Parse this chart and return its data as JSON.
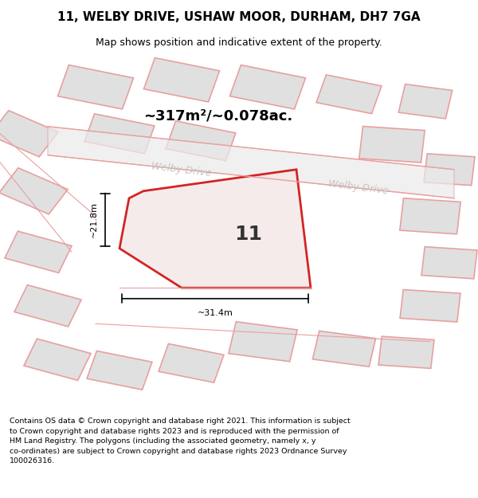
{
  "title_line1": "11, WELBY DRIVE, USHAW MOOR, DURHAM, DH7 7GA",
  "title_line2": "Map shows position and indicative extent of the property.",
  "area_text": "~317m²/~0.078ac.",
  "label_number": "11",
  "dim_horizontal": "~31.4m",
  "dim_vertical": "~21.8m",
  "road_label_left": "Welby Drive",
  "road_label_right": "Welby Drive",
  "footer_text": "Contains OS data © Crown copyright and database right 2021. This information is subject to Crown copyright and database rights 2023 and is reproduced with the permission of HM Land Registry. The polygons (including the associated geometry, namely x, y co-ordinates) are subject to Crown copyright and database rights 2023 Ordnance Survey 100026316.",
  "bg_color": "#ffffff",
  "map_bg_color": "#f5f5f5",
  "building_fill": "#e0e0e0",
  "building_edge": "#e8a0a0",
  "road_color": "#f0f0f0",
  "property_color": "#cc0000",
  "dim_color": "#000000",
  "road_label_color": "#c0c0c0",
  "title_color": "#000000",
  "footer_color": "#000000"
}
